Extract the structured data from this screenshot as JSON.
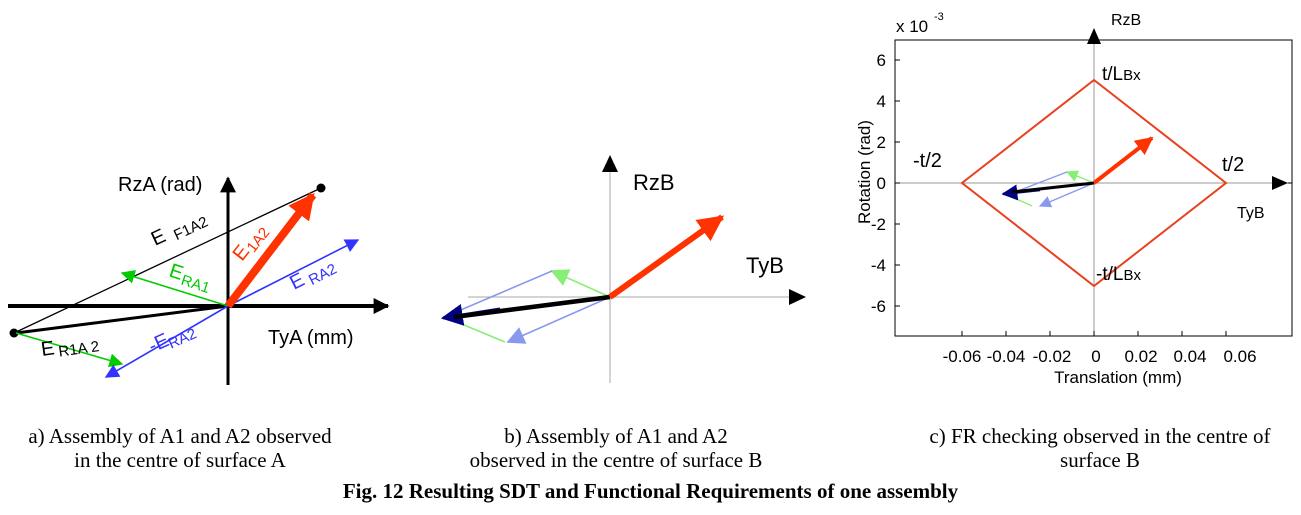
{
  "colors": {
    "black": "#000000",
    "red": "#ff3300",
    "green": "#00cc00",
    "blue": "#3333ff",
    "light_green": "#88ee77",
    "light_blue": "#8899ee",
    "dark_blue": "#000080",
    "diamond": "#e8401c"
  },
  "panel_a": {
    "y_axis_label": "RzA (rad)",
    "x_axis_label": "TyA (mm)",
    "labels": {
      "ef1a2_main": "E",
      "ef1a2_sub": "F1A2",
      "e1a2_main": "E",
      "e1a2_sub": "1A2",
      "era1_main": "E",
      "era1_sub": "RA1",
      "era2_main": "E",
      "era2_sub": "RA2",
      "er1a2_main": "E",
      "er1a2_sub": "R1A 2",
      "neg_era2_main": "-E",
      "neg_era2_sub": "RA2"
    }
  },
  "panel_b": {
    "y_axis_label": "RzB",
    "x_axis_label": "TyB"
  },
  "panel_c": {
    "exponent_prefix": "x 10",
    "exponent": "-3",
    "rz_label": "RzB",
    "ty_label": "TyB",
    "y_title": "Rotation (rad)",
    "x_title": "Translation (mm)",
    "y_ticks": [
      "6",
      "4",
      "2",
      "0",
      "-2",
      "-4",
      "-6"
    ],
    "x_ticks": [
      "-0.06",
      "-0.04",
      "-0.02",
      "0",
      "0.02",
      "0.04",
      "0.06"
    ],
    "diamond_top_label": "t/L",
    "diamond_bottom_label": "-t/L",
    "diamond_sub": "Bx",
    "diamond_left_label": "-t/2",
    "diamond_right_label": "t/2"
  },
  "captions": {
    "a_line1": "a) Assembly of A1 and A2 observed",
    "a_line2": "in the centre of surface A",
    "b_line1": "b) Assembly of A1 and A2",
    "b_line2": "observed in the centre of surface B",
    "c_line1": "c) FR checking observed in the centre of",
    "c_line2": "surface B"
  },
  "figure_title": "Fig.  12 Resulting SDT and Functional Requirements of one assembly"
}
